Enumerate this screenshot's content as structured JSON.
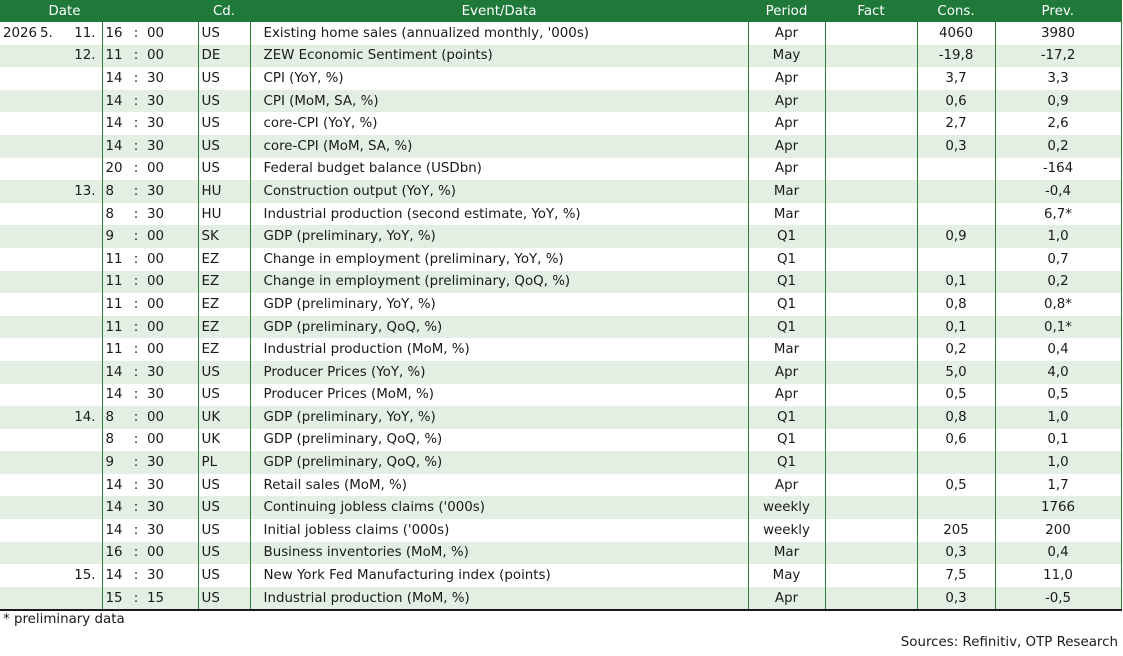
{
  "header": {
    "date": "Date",
    "cd": "Cd.",
    "event": "Event/Data",
    "period": "Period",
    "fact": "Fact",
    "cons": "Cons.",
    "prev": "Prev."
  },
  "rows": [
    {
      "year": "2026",
      "month": "5.",
      "day": "11.",
      "hour": "16",
      "min": "00",
      "cd": "US",
      "event": "Existing home sales (annualized monthly, '000s)",
      "period": "Apr",
      "fact": "",
      "cons": "4060",
      "prev": "3980"
    },
    {
      "year": "",
      "month": "",
      "day": "12.",
      "hour": "11",
      "min": "00",
      "cd": "DE",
      "event": "ZEW Economic Sentiment (points)",
      "period": "May",
      "fact": "",
      "cons": "-19,8",
      "prev": "-17,2"
    },
    {
      "year": "",
      "month": "",
      "day": "",
      "hour": "14",
      "min": "30",
      "cd": "US",
      "event": "CPI (YoY, %)",
      "period": "Apr",
      "fact": "",
      "cons": "3,7",
      "prev": "3,3"
    },
    {
      "year": "",
      "month": "",
      "day": "",
      "hour": "14",
      "min": "30",
      "cd": "US",
      "event": "CPI (MoM, SA, %)",
      "period": "Apr",
      "fact": "",
      "cons": "0,6",
      "prev": "0,9"
    },
    {
      "year": "",
      "month": "",
      "day": "",
      "hour": "14",
      "min": "30",
      "cd": "US",
      "event": "core-CPI (YoY, %)",
      "period": "Apr",
      "fact": "",
      "cons": "2,7",
      "prev": "2,6"
    },
    {
      "year": "",
      "month": "",
      "day": "",
      "hour": "14",
      "min": "30",
      "cd": "US",
      "event": "core-CPI (MoM, SA, %)",
      "period": "Apr",
      "fact": "",
      "cons": "0,3",
      "prev": "0,2"
    },
    {
      "year": "",
      "month": "",
      "day": "",
      "hour": "20",
      "min": "00",
      "cd": "US",
      "event": "Federal budget balance (USDbn)",
      "period": "Apr",
      "fact": "",
      "cons": "",
      "prev": "-164"
    },
    {
      "year": "",
      "month": "",
      "day": "13.",
      "hour": "8",
      "min": "30",
      "cd": "HU",
      "event": "Construction output (YoY, %)",
      "period": "Mar",
      "fact": "",
      "cons": "",
      "prev": "-0,4"
    },
    {
      "year": "",
      "month": "",
      "day": "",
      "hour": "8",
      "min": "30",
      "cd": "HU",
      "event": "Industrial production (second estimate, YoY, %)",
      "period": "Mar",
      "fact": "",
      "cons": "",
      "prev": "6,7*"
    },
    {
      "year": "",
      "month": "",
      "day": "",
      "hour": "9",
      "min": "00",
      "cd": "SK",
      "event": "GDP (preliminary, YoY, %)",
      "period": "Q1",
      "fact": "",
      "cons": "0,9",
      "prev": "1,0"
    },
    {
      "year": "",
      "month": "",
      "day": "",
      "hour": "11",
      "min": "00",
      "cd": "EZ",
      "event": "Change in employment (preliminary, YoY, %)",
      "period": "Q1",
      "fact": "",
      "cons": "",
      "prev": "0,7"
    },
    {
      "year": "",
      "month": "",
      "day": "",
      "hour": "11",
      "min": "00",
      "cd": "EZ",
      "event": "Change in employment (preliminary, QoQ, %)",
      "period": "Q1",
      "fact": "",
      "cons": "0,1",
      "prev": "0,2"
    },
    {
      "year": "",
      "month": "",
      "day": "",
      "hour": "11",
      "min": "00",
      "cd": "EZ",
      "event": "GDP (preliminary, YoY, %)",
      "period": "Q1",
      "fact": "",
      "cons": "0,8",
      "prev": "0,8*"
    },
    {
      "year": "",
      "month": "",
      "day": "",
      "hour": "11",
      "min": "00",
      "cd": "EZ",
      "event": "GDP (preliminary, QoQ, %)",
      "period": "Q1",
      "fact": "",
      "cons": "0,1",
      "prev": "0,1*"
    },
    {
      "year": "",
      "month": "",
      "day": "",
      "hour": "11",
      "min": "00",
      "cd": "EZ",
      "event": "Industrial production (MoM, %)",
      "period": "Mar",
      "fact": "",
      "cons": "0,2",
      "prev": "0,4"
    },
    {
      "year": "",
      "month": "",
      "day": "",
      "hour": "14",
      "min": "30",
      "cd": "US",
      "event": "Producer Prices (YoY, %)",
      "period": "Apr",
      "fact": "",
      "cons": "5,0",
      "prev": "4,0"
    },
    {
      "year": "",
      "month": "",
      "day": "",
      "hour": "14",
      "min": "30",
      "cd": "US",
      "event": "Producer Prices (MoM, %)",
      "period": "Apr",
      "fact": "",
      "cons": "0,5",
      "prev": "0,5"
    },
    {
      "year": "",
      "month": "",
      "day": "14.",
      "hour": "8",
      "min": "00",
      "cd": "UK",
      "event": "GDP (preliminary, YoY, %)",
      "period": "Q1",
      "fact": "",
      "cons": "0,8",
      "prev": "1,0"
    },
    {
      "year": "",
      "month": "",
      "day": "",
      "hour": "8",
      "min": "00",
      "cd": "UK",
      "event": "GDP (preliminary, QoQ, %)",
      "period": "Q1",
      "fact": "",
      "cons": "0,6",
      "prev": "0,1"
    },
    {
      "year": "",
      "month": "",
      "day": "",
      "hour": "9",
      "min": "30",
      "cd": "PL",
      "event": "GDP (preliminary, QoQ, %)",
      "period": "Q1",
      "fact": "",
      "cons": "",
      "prev": "1,0"
    },
    {
      "year": "",
      "month": "",
      "day": "",
      "hour": "14",
      "min": "30",
      "cd": "US",
      "event": "Retail sales (MoM, %)",
      "period": "Apr",
      "fact": "",
      "cons": "0,5",
      "prev": "1,7"
    },
    {
      "year": "",
      "month": "",
      "day": "",
      "hour": "14",
      "min": "30",
      "cd": "US",
      "event": "Continuing jobless claims ('000s)",
      "period": "weekly",
      "fact": "",
      "cons": "",
      "prev": "1766"
    },
    {
      "year": "",
      "month": "",
      "day": "",
      "hour": "14",
      "min": "30",
      "cd": "US",
      "event": "Initial jobless claims ('000s)",
      "period": "weekly",
      "fact": "",
      "cons": "205",
      "prev": "200"
    },
    {
      "year": "",
      "month": "",
      "day": "",
      "hour": "16",
      "min": "00",
      "cd": "US",
      "event": "Business inventories (MoM, %)",
      "period": "Mar",
      "fact": "",
      "cons": "0,3",
      "prev": "0,4"
    },
    {
      "year": "",
      "month": "",
      "day": "15.",
      "hour": "14",
      "min": "30",
      "cd": "US",
      "event": "New York Fed Manufacturing index (points)",
      "period": "May",
      "fact": "",
      "cons": "7,5",
      "prev": "11,0"
    },
    {
      "year": "",
      "month": "",
      "day": "",
      "hour": "15",
      "min": "15",
      "cd": "US",
      "event": "Industrial production (MoM, %)",
      "period": "Apr",
      "fact": "",
      "cons": "0,3",
      "prev": "-0,5"
    }
  ],
  "time_separator": ":",
  "footnote": "* preliminary data",
  "sources": "Sources: Refinitiv, OTP Research"
}
